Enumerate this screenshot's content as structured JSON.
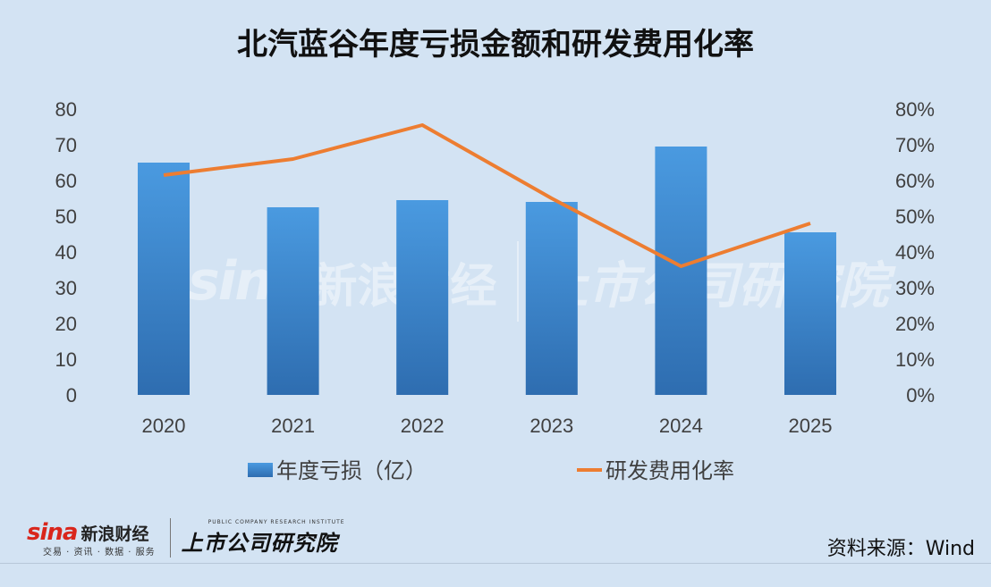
{
  "title": "北汽蓝谷年度亏损金额和研发费用化率",
  "chart_data": {
    "type": "bar",
    "categories": [
      "2020",
      "2021",
      "2022",
      "2023",
      "2024",
      "2025"
    ],
    "series": [
      {
        "name": "年度亏损（亿）",
        "type": "bar",
        "axis": "left",
        "values": [
          65,
          52.5,
          54.5,
          54,
          69.5,
          45.5
        ]
      },
      {
        "name": "研发费用化率",
        "type": "line",
        "axis": "right",
        "values": [
          0.615,
          0.66,
          0.755,
          0.55,
          0.36,
          0.48
        ]
      }
    ],
    "ylim_left": [
      0,
      80
    ],
    "ylim_right": [
      0,
      0.8
    ],
    "yticks_left": [
      "0",
      "10",
      "20",
      "30",
      "40",
      "50",
      "60",
      "70",
      "80"
    ],
    "yticks_right": [
      "0%",
      "10%",
      "20%",
      "30%",
      "40%",
      "50%",
      "60%",
      "70%",
      "80%"
    ],
    "legend_position": "bottom",
    "grid": false,
    "colors": {
      "bar_top": "#4a9ae0",
      "bar_bottom": "#2e6db0",
      "line": "#ed7d31"
    }
  },
  "watermark": {
    "sina_en": "sina",
    "sina_cn": "新浪财经",
    "institute": "上市公司研究院"
  },
  "footer": {
    "sina_en": "sina",
    "sina_cn": "新浪财经",
    "sina_sub": "交易 · 资讯 · 数据 · 服务",
    "institute_en": "PUBLIC COMPANY RESEARCH INSTITUTE",
    "institute_cn": "上市公司研究院",
    "source": "资料来源：Wind"
  }
}
